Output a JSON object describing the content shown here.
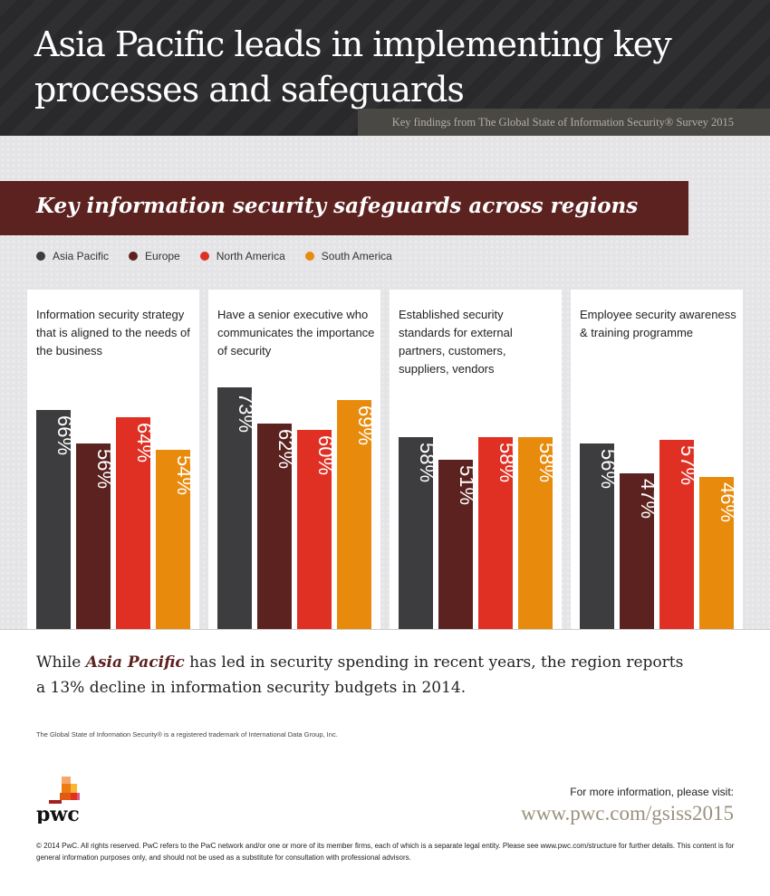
{
  "header": {
    "title_line1": "Asia Pacific leads in implementing key",
    "title_line2": "processes and safeguards",
    "subtitle": "Key findings from The Global State of Information Security® Survey 2015"
  },
  "chart_data": {
    "type": "bar",
    "title": "Key information security safeguards across regions",
    "legend_position": "top-left",
    "categories": [
      "Information security strategy that is aligned to the needs of the business",
      "Have a senior executive who communicates the importance of security",
      "Established security standards for external partners, customers, suppliers, vendors",
      "Employee security awareness & training programme"
    ],
    "series": [
      {
        "name": "Asia Pacific",
        "color": "#3d3d3f",
        "values": [
          66,
          73,
          58,
          56
        ]
      },
      {
        "name": "Europe",
        "color": "#5c2220",
        "values": [
          56,
          62,
          51,
          47
        ]
      },
      {
        "name": "North America",
        "color": "#df3023",
        "values": [
          64,
          60,
          58,
          57
        ]
      },
      {
        "name": "South America",
        "color": "#e88b0c",
        "values": [
          54,
          69,
          58,
          46
        ]
      }
    ],
    "unit": "%",
    "ylim": [
      0,
      100
    ]
  },
  "note": {
    "pre": "While ",
    "highlight": "Asia Pacific",
    "post": " has led in security spending in recent years, the region reports a 13% decline in information security budgets in 2014."
  },
  "trademark": "The Global State of Information Security® is a registered trademark of International Data Group, Inc.",
  "logo_text": "pwc",
  "more_info": "For more information, please visit:",
  "url": "www.pwc.com/gsiss2015",
  "copyright": "© 2014 PwC. All rights reserved. PwC refers to the PwC network and/or one or more of its member firms, each of which is a separate legal entity. Please see www.pwc.com/structure for further details. This content is for general information purposes only, and should not be used as a substitute for consultation with professional advisors."
}
